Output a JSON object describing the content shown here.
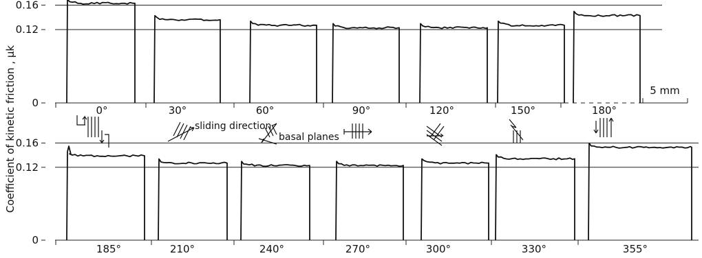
{
  "chart_data": {
    "type": "line",
    "ylabel": "Coefficient of kinetic friction , μk",
    "ytick_labels": [
      "0",
      "0.12",
      "0.16"
    ],
    "yticks": [
      0,
      0.12,
      0.16
    ],
    "scale_bar_label": "5 mm",
    "annotations": [
      "sliding direction",
      "basal planes"
    ],
    "panels": [
      {
        "name": "top row",
        "traces": [
          {
            "angle_label": "0°",
            "mu_k": 0.163
          },
          {
            "angle_label": "30°",
            "mu_k": 0.136
          },
          {
            "angle_label": "60°",
            "mu_k": 0.127
          },
          {
            "angle_label": "90°",
            "mu_k": 0.123
          },
          {
            "angle_label": "120°",
            "mu_k": 0.123
          },
          {
            "angle_label": "150°",
            "mu_k": 0.127
          },
          {
            "angle_label": "180°",
            "mu_k": 0.143
          }
        ]
      },
      {
        "name": "bottom row",
        "traces": [
          {
            "angle_label": "185°",
            "mu_k": 0.139
          },
          {
            "angle_label": "210°",
            "mu_k": 0.127
          },
          {
            "angle_label": "240°",
            "mu_k": 0.123
          },
          {
            "angle_label": "270°",
            "mu_k": 0.123
          },
          {
            "angle_label": "300°",
            "mu_k": 0.127
          },
          {
            "angle_label": "330°",
            "mu_k": 0.134
          },
          {
            "angle_label": "355°",
            "mu_k": 0.153
          }
        ]
      }
    ]
  }
}
